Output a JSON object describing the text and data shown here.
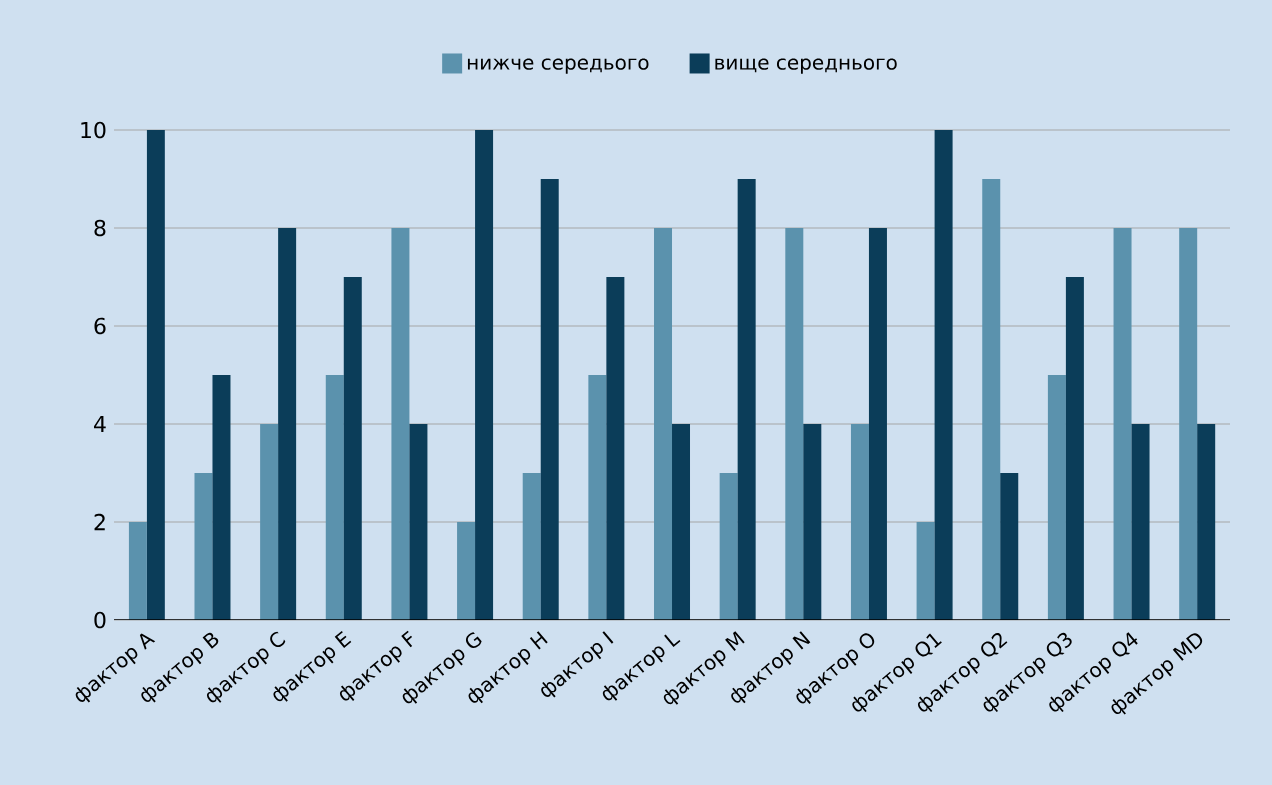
{
  "chart_data": {
    "type": "bar",
    "categories": [
      "фактор A",
      "фактор B",
      "фактор C",
      "фактор E",
      "фактор F",
      "фактор G",
      "фактор H",
      "фактор I",
      "фактор L",
      "фактор M",
      "фактор N",
      "фактор O",
      "фактор Q1",
      "фактор Q2",
      "фактор Q3",
      "фактор Q4",
      "фактор MD"
    ],
    "series": [
      {
        "name": "нижче середього",
        "color": "#5b92ad",
        "values": [
          2,
          3,
          4,
          5,
          8,
          2,
          3,
          5,
          8,
          3,
          8,
          4,
          2,
          9,
          5,
          8,
          8
        ]
      },
      {
        "name": "вище середнього",
        "color": "#0b3d59",
        "values": [
          10,
          5,
          8,
          7,
          4,
          10,
          9,
          7,
          4,
          9,
          4,
          8,
          10,
          3,
          7,
          4,
          4
        ]
      }
    ],
    "ylim": [
      0,
      10
    ],
    "yticks": [
      0,
      2,
      4,
      6,
      8,
      10
    ],
    "grid": "y",
    "legend": "top"
  }
}
